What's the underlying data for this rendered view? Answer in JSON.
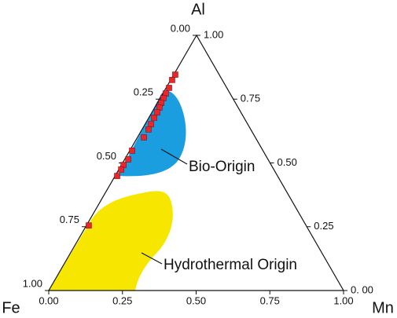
{
  "chart_data": {
    "type": "ternary",
    "vertices": [
      "Al",
      "Fe",
      "Mn"
    ],
    "fe_ticks": [
      {
        "value": 0,
        "label": "0.00"
      },
      {
        "value": 0.25,
        "label": "0.25"
      },
      {
        "value": 0.5,
        "label": "0.50"
      },
      {
        "value": 0.75,
        "label": "0.75"
      },
      {
        "value": 1,
        "label": "1.00"
      }
    ],
    "mn_ticks": [
      {
        "value": 0,
        "label": "0.00"
      },
      {
        "value": 0.25,
        "label": "0.25"
      },
      {
        "value": 0.5,
        "label": "0.50"
      },
      {
        "value": 0.75,
        "label": "0.75"
      },
      {
        "value": 1,
        "label": "1.00"
      }
    ],
    "al_ticks": [
      {
        "value": 0,
        "label": "0. 00"
      },
      {
        "value": 0.25,
        "label": "0.25"
      },
      {
        "value": 0.5,
        "label": "0.50"
      },
      {
        "value": 0.75,
        "label": "0.75"
      },
      {
        "value": 1,
        "label": "1.00"
      }
    ],
    "series": [
      {
        "color": "#e8262b",
        "al": [
          0.846,
          0.825,
          0.794,
          0.772,
          0.754,
          0.735,
          0.717,
          0.698,
          0.677,
          0.652,
          0.631,
          0.6,
          0.548,
          0.514,
          0.492,
          0.474,
          0.449,
          0.255
        ],
        "fe": [
          0.149,
          0.17,
          0.196,
          0.218,
          0.235,
          0.252,
          0.267,
          0.284,
          0.305,
          0.328,
          0.347,
          0.378,
          0.444,
          0.474,
          0.501,
          0.518,
          0.544,
          0.737
        ],
        "mn": [
          0.005,
          0.005,
          0.01,
          0.01,
          0.011,
          0.013,
          0.016,
          0.018,
          0.018,
          0.02,
          0.022,
          0.022,
          0.008,
          0.012,
          0.007,
          0.008,
          0.007,
          0.008
        ]
      }
    ],
    "annotations": [
      "Bio-Origin",
      "Hydrothermal Origin"
    ]
  }
}
